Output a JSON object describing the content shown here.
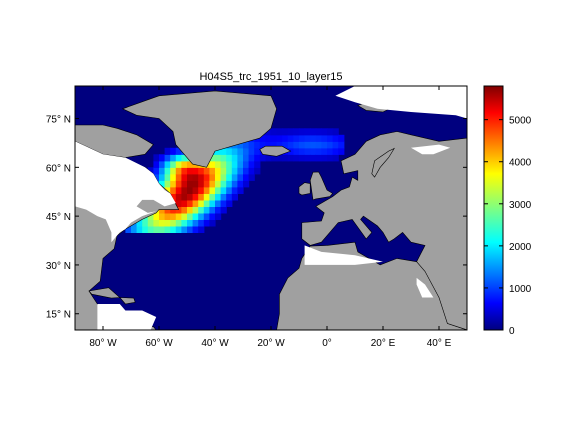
{
  "title": "H04S5_trc_1951_10_layer15",
  "map": {
    "lon_range": [
      -90,
      50
    ],
    "lat_range": [
      10,
      85
    ],
    "x_ticks": [
      {
        "value": -80,
        "label": "80° W"
      },
      {
        "value": -60,
        "label": "60° W"
      },
      {
        "value": -40,
        "label": "40° W"
      },
      {
        "value": -20,
        "label": "20° W"
      },
      {
        "value": 0,
        "label": "0°"
      },
      {
        "value": 20,
        "label": "20° E"
      },
      {
        "value": 40,
        "label": "40° E"
      }
    ],
    "y_ticks": [
      {
        "value": 75,
        "label": "75° N"
      },
      {
        "value": 60,
        "label": "60° N"
      },
      {
        "value": 45,
        "label": "45° N"
      },
      {
        "value": 30,
        "label": "30° N"
      },
      {
        "value": 15,
        "label": "15° N"
      }
    ],
    "colors": {
      "land": "#a0a0a0",
      "ocean_zero": "#00007f",
      "nodata": "#ffffff",
      "coast": "#000000"
    }
  },
  "colorbar": {
    "range": [
      0,
      5800
    ],
    "ticks": [
      {
        "value": 0,
        "label": "0"
      },
      {
        "value": 1000,
        "label": "1000"
      },
      {
        "value": 2000,
        "label": "2000"
      },
      {
        "value": 3000,
        "label": "3000"
      },
      {
        "value": 4000,
        "label": "4000"
      },
      {
        "value": 5000,
        "label": "5000"
      }
    ],
    "colormap": "jet"
  },
  "plume": {
    "description_free": true,
    "peak_value": 5600,
    "peak_lon": -50,
    "peak_lat": 52
  }
}
